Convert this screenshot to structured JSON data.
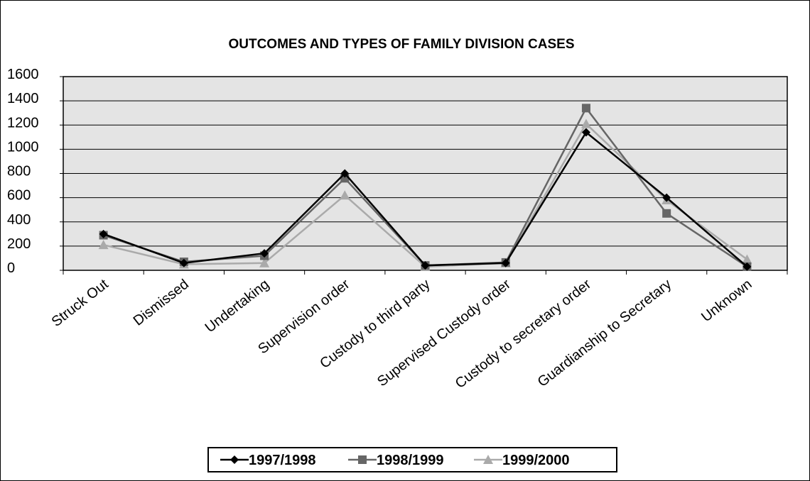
{
  "chart_data": {
    "type": "line",
    "title": "OUTCOMES AND TYPES OF FAMILY DIVISION CASES",
    "xlabel": "",
    "ylabel": "",
    "categories": [
      "Struck Out",
      "Dismissed",
      "Undertaking",
      "Supervision order",
      "Custody to third party",
      "Supervised Custody order",
      "Custody to secretary order",
      "Guardianship to Secretary",
      "Unknown"
    ],
    "ylim": [
      0,
      1600
    ],
    "yticks": [
      0,
      200,
      400,
      600,
      800,
      1000,
      1200,
      1400,
      1600
    ],
    "grid": true,
    "legend_position": "bottom",
    "series": [
      {
        "name": "1997/1998",
        "marker": "diamond",
        "color": "#000000",
        "values": [
          300,
          60,
          140,
          800,
          40,
          60,
          1140,
          600,
          30
        ]
      },
      {
        "name": "1998/1999",
        "marker": "square",
        "color": "#666666",
        "values": [
          290,
          70,
          120,
          760,
          40,
          65,
          1340,
          470,
          30
        ]
      },
      {
        "name": "1999/2000",
        "marker": "triangle",
        "color": "#aaaaaa",
        "values": [
          210,
          50,
          60,
          620,
          30,
          60,
          1210,
          580,
          90
        ]
      }
    ]
  }
}
